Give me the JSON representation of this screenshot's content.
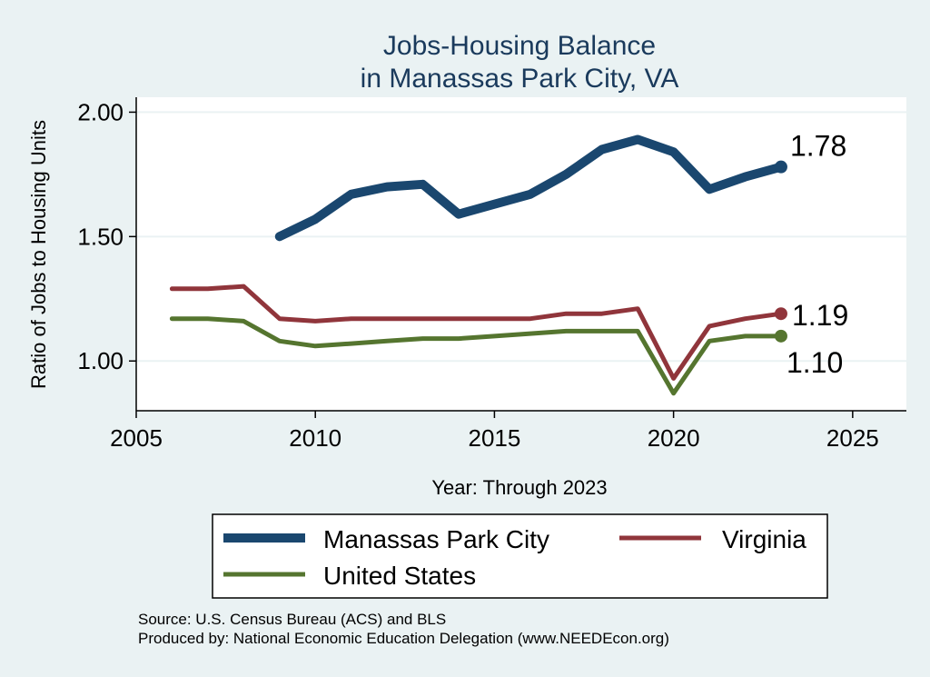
{
  "chart_data": {
    "type": "line",
    "title_line1": "Jobs-Housing Balance",
    "title_line2": "in Manassas Park City, VA",
    "xlabel": "Year: Through 2023",
    "ylabel": "Ratio of Jobs to Housing Units",
    "xlim": [
      2005,
      2026.5
    ],
    "ylim": [
      0.8,
      2.06
    ],
    "x_ticks": [
      2005,
      2010,
      2015,
      2020,
      2025
    ],
    "y_ticks": [
      1.0,
      1.5,
      2.0
    ],
    "y_tick_labels": [
      "1.00",
      "1.50",
      "2.00"
    ],
    "grid": true,
    "legend_position": "bottom",
    "series": [
      {
        "name": "Manassas Park City",
        "color": "#1a476f",
        "width": 10,
        "x": [
          2009,
          2010,
          2011,
          2012,
          2013,
          2014,
          2015,
          2016,
          2017,
          2018,
          2019,
          2020,
          2021,
          2022,
          2023
        ],
        "values": [
          1.5,
          1.57,
          1.67,
          1.7,
          1.71,
          1.59,
          1.63,
          1.67,
          1.75,
          1.85,
          1.89,
          1.84,
          1.69,
          1.74,
          1.78
        ],
        "end_label": "1.78"
      },
      {
        "name": "Virginia",
        "color": "#90353b",
        "width": 5,
        "x": [
          2006,
          2007,
          2008,
          2009,
          2010,
          2011,
          2012,
          2013,
          2014,
          2015,
          2016,
          2017,
          2018,
          2019,
          2020,
          2021,
          2022,
          2023
        ],
        "values": [
          1.29,
          1.29,
          1.3,
          1.17,
          1.16,
          1.17,
          1.17,
          1.17,
          1.17,
          1.17,
          1.17,
          1.19,
          1.19,
          1.21,
          0.93,
          1.14,
          1.17,
          1.19
        ],
        "end_label": "1.19"
      },
      {
        "name": "United States",
        "color": "#55752f",
        "width": 5,
        "x": [
          2006,
          2007,
          2008,
          2009,
          2010,
          2011,
          2012,
          2013,
          2014,
          2015,
          2016,
          2017,
          2018,
          2019,
          2020,
          2021,
          2022,
          2023
        ],
        "values": [
          1.17,
          1.17,
          1.16,
          1.08,
          1.06,
          1.07,
          1.08,
          1.09,
          1.09,
          1.1,
          1.11,
          1.12,
          1.12,
          1.12,
          0.87,
          1.08,
          1.1,
          1.1
        ],
        "end_label": "1.10"
      }
    ],
    "source_line1": "Source: U.S. Census Bureau (ACS) and BLS",
    "source_line2": "Produced by: National Economic Education Delegation (www.NEEDEcon.org)"
  }
}
